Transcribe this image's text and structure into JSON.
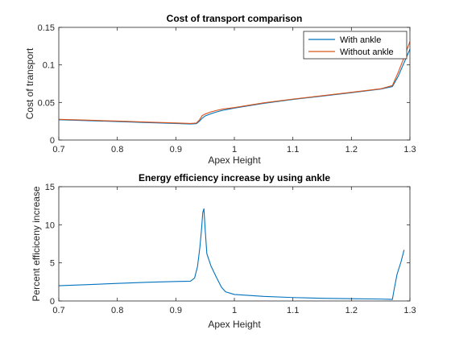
{
  "chart_data": [
    {
      "type": "line",
      "title": "Cost of transport comparison",
      "xlabel": "Apex Height",
      "ylabel": "Cost of transport",
      "xlim": [
        0.7,
        1.3
      ],
      "ylim": [
        0,
        0.15
      ],
      "xticks": [
        0.7,
        0.8,
        0.9,
        1,
        1.1,
        1.2,
        1.3
      ],
      "xtick_labels": [
        "0.7",
        "0.8",
        "0.9",
        "1",
        "1.1",
        "1.2",
        "1.3"
      ],
      "yticks": [
        0,
        0.05,
        0.1,
        0.15
      ],
      "ytick_labels": [
        "0",
        "0.05",
        "0.1",
        "0.15"
      ],
      "grid": false,
      "legend": "top-right",
      "series": [
        {
          "name": "With ankle",
          "color": "#0072BD",
          "x": [
            0.7,
            0.75,
            0.8,
            0.85,
            0.9,
            0.925,
            0.935,
            0.94,
            0.945,
            0.95,
            0.96,
            0.97,
            0.98,
            1.0,
            1.05,
            1.1,
            1.15,
            1.2,
            1.25,
            1.27,
            1.28,
            1.29,
            1.3
          ],
          "y": [
            0.027,
            0.0258,
            0.0245,
            0.0232,
            0.022,
            0.0213,
            0.0217,
            0.0248,
            0.029,
            0.032,
            0.035,
            0.0375,
            0.0395,
            0.0425,
            0.0488,
            0.054,
            0.0585,
            0.063,
            0.0678,
            0.0712,
            0.085,
            0.103,
            0.121
          ]
        },
        {
          "name": "Without ankle",
          "color": "#D95319",
          "x": [
            0.7,
            0.75,
            0.8,
            0.85,
            0.9,
            0.925,
            0.935,
            0.94,
            0.945,
            0.95,
            0.96,
            0.97,
            0.98,
            1.0,
            1.05,
            1.1,
            1.15,
            1.2,
            1.25,
            1.27,
            1.28,
            1.29,
            1.3
          ],
          "y": [
            0.0275,
            0.0264,
            0.0252,
            0.0239,
            0.0227,
            0.022,
            0.0226,
            0.0265,
            0.0325,
            0.0345,
            0.0375,
            0.0395,
            0.0412,
            0.0432,
            0.0495,
            0.0545,
            0.059,
            0.0635,
            0.0682,
            0.0725,
            0.09,
            0.11,
            0.131
          ]
        }
      ]
    },
    {
      "type": "line",
      "title": "Energy efficiency increase by using ankle",
      "xlabel": "Apex Height",
      "ylabel": "Percent efficiceny increase",
      "xlim": [
        0.7,
        1.3
      ],
      "ylim": [
        0,
        15
      ],
      "xticks": [
        0.7,
        0.8,
        0.9,
        1,
        1.1,
        1.2,
        1.3
      ],
      "xtick_labels": [
        "0.7",
        "0.8",
        "0.9",
        "1",
        "1.1",
        "1.2",
        "1.3"
      ],
      "yticks": [
        0,
        5,
        10,
        15
      ],
      "ytick_labels": [
        "0",
        "5",
        "10",
        "15"
      ],
      "grid": false,
      "series": [
        {
          "color": "#0072BD",
          "x": [
            0.7,
            0.75,
            0.8,
            0.85,
            0.9,
            0.925,
            0.932,
            0.937,
            0.941,
            0.944,
            0.946,
            0.948,
            0.95,
            0.953,
            0.96,
            0.97,
            0.978,
            0.985,
            1.0,
            1.05,
            1.1,
            1.15,
            1.2,
            1.25,
            1.265,
            1.27,
            1.273,
            1.278,
            1.285,
            1.29
          ],
          "y": [
            2.0,
            2.15,
            2.3,
            2.45,
            2.55,
            2.6,
            3.0,
            4.5,
            7.0,
            9.5,
            11.6,
            12.1,
            9.5,
            6.2,
            4.6,
            3.0,
            1.8,
            1.2,
            0.85,
            0.6,
            0.45,
            0.35,
            0.3,
            0.25,
            0.22,
            0.2,
            1.5,
            3.5,
            5.2,
            6.7
          ]
        }
      ]
    }
  ]
}
